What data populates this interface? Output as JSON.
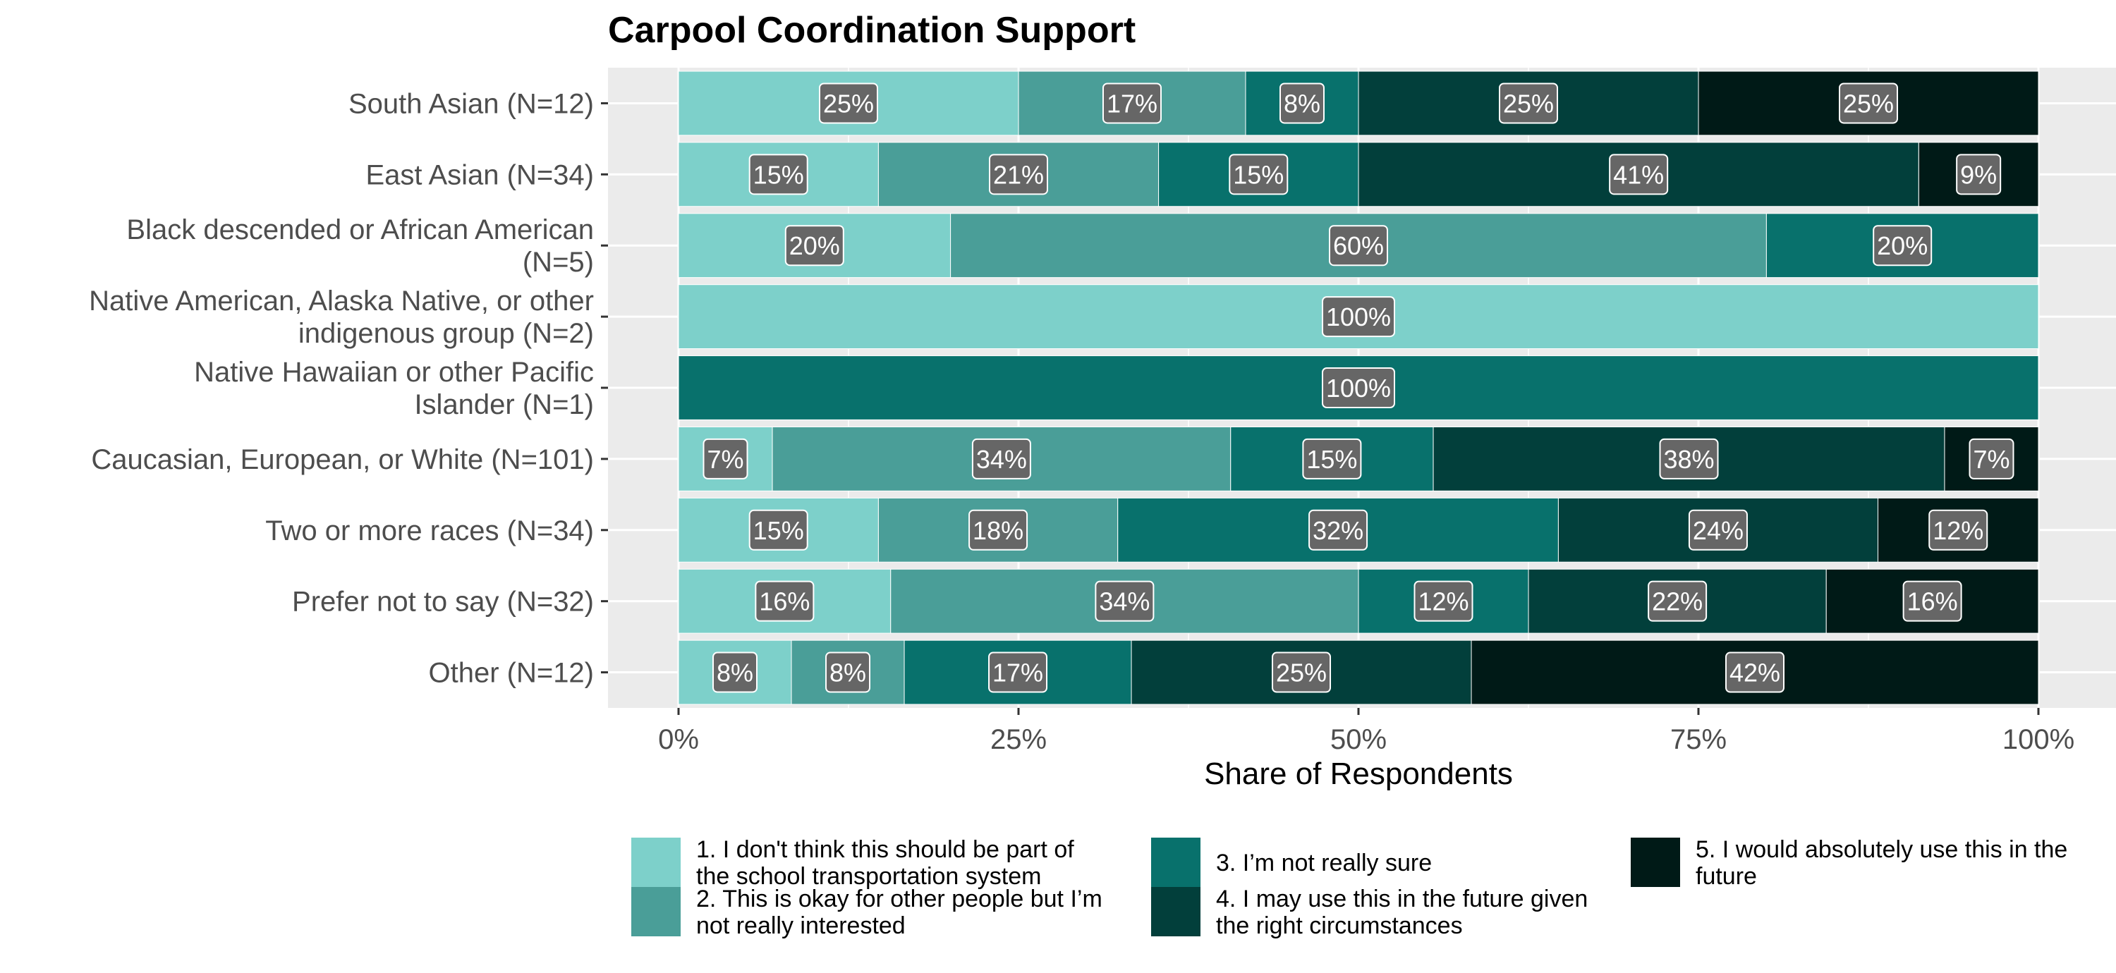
{
  "chart_data": {
    "type": "bar",
    "orientation": "horizontal",
    "stacked": true,
    "title": "Carpool Coordination Support",
    "xlabel": "Share of Respondents",
    "ylabel": "",
    "xlim": [
      0,
      100
    ],
    "x_ticks": [
      "0%",
      "25%",
      "50%",
      "75%",
      "100%"
    ],
    "grid": true,
    "legend_position": "bottom",
    "categories": [
      "South Asian (N=12)",
      "East Asian (N=34)",
      "Black descended or African American (N=5)",
      "Native American, Alaska Native, or other indigenous group (N=2)",
      "Native Hawaiian or other Pacific Islander (N=1)",
      "Caucasian, European, or White (N=101)",
      "Two or more races (N=34)",
      "Prefer not to say (N=32)",
      "Other (N=12)"
    ],
    "category_lines": [
      [
        "South Asian (N=12)"
      ],
      [
        "East Asian (N=34)"
      ],
      [
        "Black descended or African American",
        "(N=5)"
      ],
      [
        "Native American, Alaska Native, or other",
        "indigenous group (N=2)"
      ],
      [
        "Native Hawaiian or other Pacific",
        "Islander (N=1)"
      ],
      [
        "Caucasian, European, or White (N=101)"
      ],
      [
        "Two or more races (N=34)"
      ],
      [
        "Prefer not to say (N=32)"
      ],
      [
        "Other (N=12)"
      ]
    ],
    "series": [
      {
        "name": "1. I don't think this should be part of the school transportation system",
        "legend_lines": [
          "1. I don't think this should be part of",
          "the school transportation system"
        ],
        "color": "#7dd0ca",
        "values": [
          25,
          14.7,
          20,
          100,
          0,
          6.9,
          14.7,
          15.6,
          8.3
        ],
        "labels": [
          "25%",
          "15%",
          "20%",
          "100%",
          "",
          "7%",
          "15%",
          "16%",
          "8%"
        ]
      },
      {
        "name": "2. This is okay for other people but I’m not really interested",
        "legend_lines": [
          "2. This is okay for other people but I’m",
          "not really interested"
        ],
        "color": "#4a9e98",
        "values": [
          16.7,
          20.6,
          60,
          0,
          0,
          33.7,
          17.6,
          34.4,
          8.3
        ],
        "labels": [
          "17%",
          "21%",
          "60%",
          "",
          "",
          "34%",
          "18%",
          "34%",
          "8%"
        ]
      },
      {
        "name": "3. I’m not really sure",
        "legend_lines": [
          "3. I’m not really sure"
        ],
        "color": "#08716c",
        "values": [
          8.3,
          14.7,
          20,
          0,
          100,
          14.9,
          32.4,
          12.5,
          16.7
        ],
        "labels": [
          "8%",
          "15%",
          "20%",
          "",
          "100%",
          "15%",
          "32%",
          "12%",
          "17%"
        ]
      },
      {
        "name": "4. I may use this in the future given the right circumstances",
        "legend_lines": [
          "4. I may use this in the future given",
          "the right circumstances"
        ],
        "color": "#023f3b",
        "values": [
          25,
          41.2,
          0,
          0,
          0,
          37.6,
          23.5,
          21.9,
          25
        ],
        "labels": [
          "25%",
          "41%",
          "",
          "",
          "",
          "38%",
          "24%",
          "22%",
          "25%"
        ]
      },
      {
        "name": "5. I would absolutely use this in the future",
        "legend_lines": [
          "5. I would absolutely use this in the",
          "future"
        ],
        "color": "#001a17",
        "values": [
          25,
          8.8,
          0,
          0,
          0,
          6.9,
          11.8,
          15.6,
          41.7
        ],
        "labels": [
          "25%",
          "9%",
          "",
          "",
          "",
          "7%",
          "12%",
          "16%",
          "42%"
        ]
      }
    ]
  }
}
